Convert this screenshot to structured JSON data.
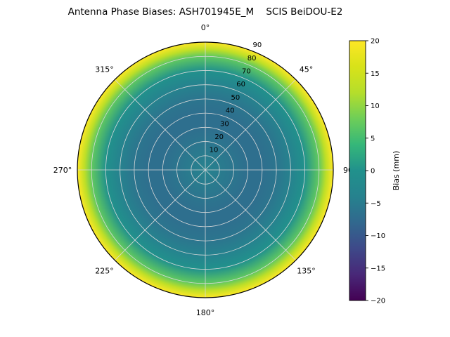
{
  "chart_data": {
    "type": "heatmap",
    "projection": "polar",
    "title": "Antenna Phase Biases: ASH701945E_M    SCIS BeiDOU-E2",
    "angular_tick_labels": [
      "0°",
      "45°",
      "90",
      "135°",
      "180°",
      "225°",
      "270°",
      "315°"
    ],
    "angular_tick_degrees": [
      0,
      45,
      90,
      135,
      180,
      225,
      270,
      315
    ],
    "radial_axis_max": 90,
    "radial_tick_values": [
      10,
      20,
      30,
      40,
      50,
      60,
      70,
      80,
      90
    ],
    "radial_tick_labels": [
      "10",
      "20",
      "30",
      "40",
      "50",
      "60",
      "70",
      "80",
      "90"
    ],
    "radial_label_angle_deg": 22.5,
    "azimuthally_symmetric": true,
    "radial_profile": {
      "zenith_deg": [
        0,
        10,
        20,
        30,
        40,
        50,
        60,
        70,
        80,
        85,
        90
      ],
      "bias_mm": [
        -4,
        -5,
        -6,
        -7,
        -7,
        -6,
        -4,
        0,
        7,
        13,
        20
      ]
    },
    "colorbar": {
      "label": "Bias (mm)",
      "min": -20,
      "max": 20,
      "tick_values": [
        20,
        15,
        10,
        5,
        0,
        -5,
        -10,
        -15,
        -20
      ],
      "tick_labels": [
        "20",
        "15",
        "10",
        "5",
        "0",
        "−5",
        "−10",
        "−15",
        "−20"
      ],
      "colormap": "viridis",
      "viridis_hex": [
        "#440154",
        "#482878",
        "#3e4989",
        "#31688e",
        "#26828e",
        "#21918c",
        "#35b779",
        "#6ece58",
        "#b5de2b",
        "#d8e219",
        "#fde725"
      ]
    },
    "grid": {
      "color": "#d9d9d9",
      "spoke_step_deg": 45
    }
  }
}
